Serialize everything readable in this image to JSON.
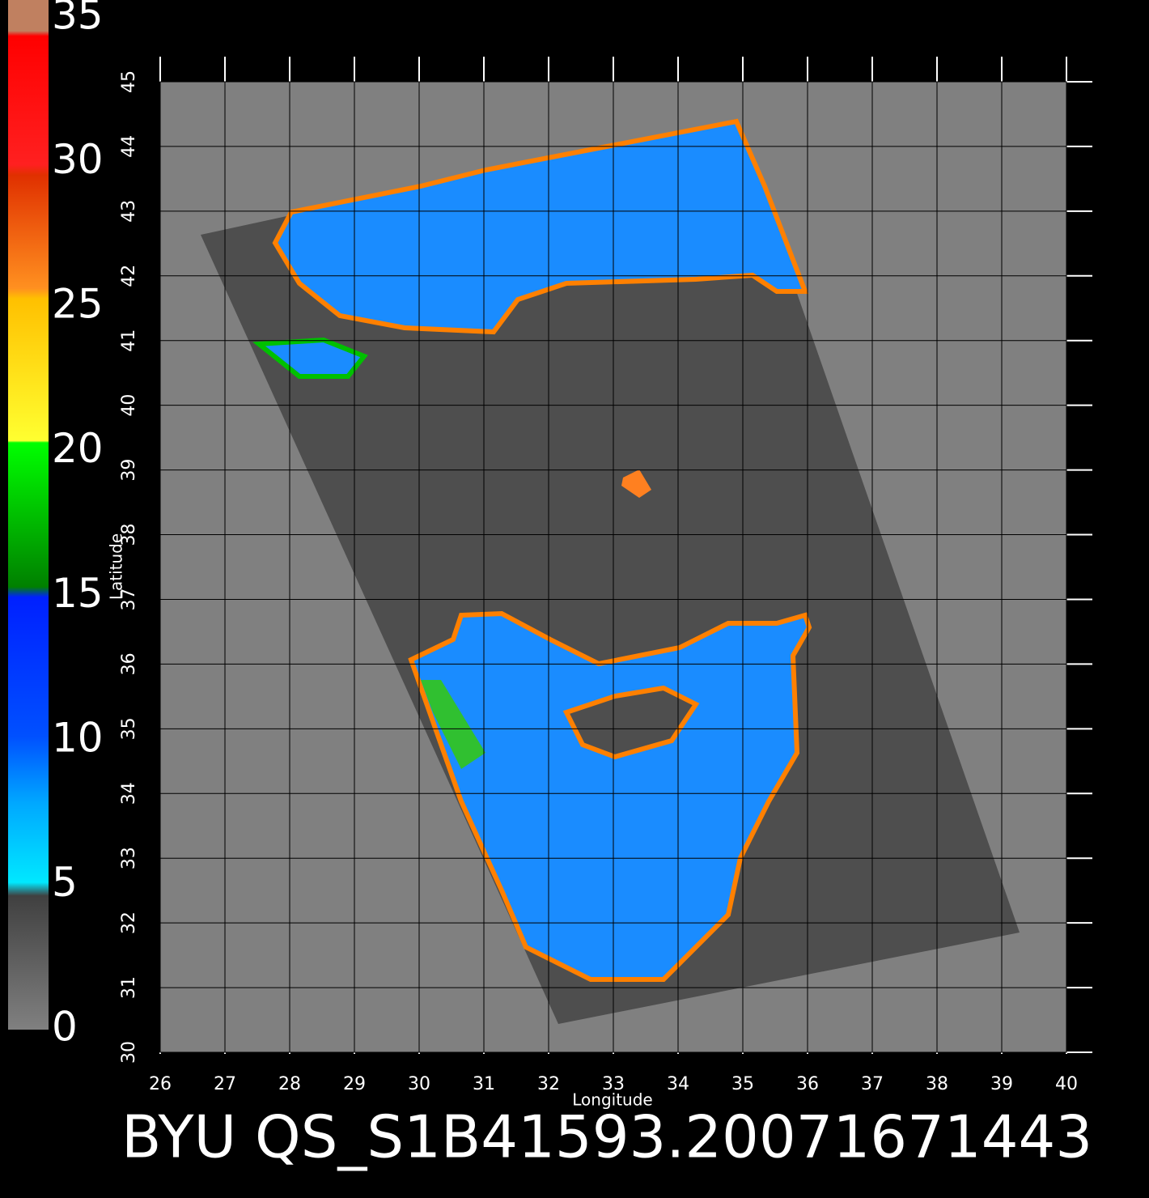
{
  "chart_data": {
    "type": "map",
    "title": "BYU QS_S1B41593.20071671443",
    "x_label": "Longitude",
    "y_label": "Latitude",
    "xlim": [
      26,
      40
    ],
    "ylim": [
      30,
      45
    ],
    "xticks": [
      26,
      27,
      28,
      29,
      30,
      31,
      32,
      33,
      34,
      35,
      36,
      37,
      38,
      39,
      40
    ],
    "yticks": [
      30,
      31,
      32,
      33,
      34,
      35,
      36,
      37,
      38,
      39,
      40,
      41,
      42,
      43,
      44,
      45
    ],
    "grid": true,
    "colorbar": {
      "lim": [
        0,
        35
      ],
      "ticks": [
        0,
        5,
        10,
        15,
        20,
        25,
        30,
        35
      ]
    }
  }
}
